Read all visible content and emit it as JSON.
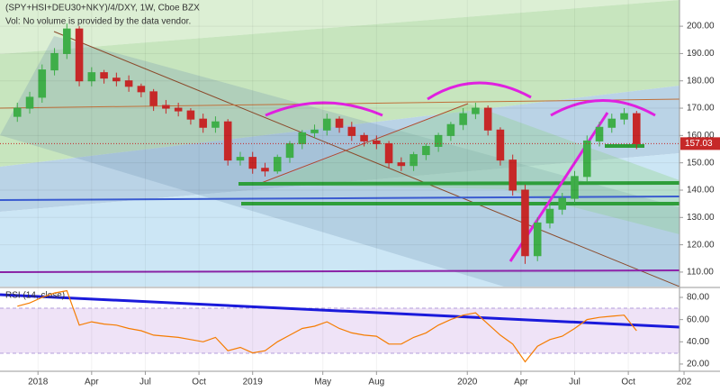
{
  "chart_data": {
    "type": "candlestick",
    "title": "(SPY+HSI+DEU30+NKY)/4/DXY, 1W, Cboe BZX",
    "subtitle": "Vol: No volume is provided by the data vendor.",
    "x": [
      -5,
      -2,
      1,
      4,
      7,
      10,
      13,
      16,
      19,
      22,
      25,
      28,
      31,
      34,
      37,
      40,
      43,
      46,
      49,
      52,
      55,
      58,
      61,
      64,
      67,
      70,
      73,
      76,
      79,
      82,
      85,
      88,
      91,
      94,
      97,
      100,
      103,
      106,
      109,
      112,
      115,
      118,
      121,
      124,
      127,
      130,
      133,
      136,
      139,
      142,
      145
    ],
    "open": [
      167,
      170,
      174,
      184,
      190,
      199,
      180,
      183,
      181,
      180,
      178,
      176,
      171,
      170,
      169,
      166,
      163,
      165,
      151,
      152,
      148,
      147,
      152,
      157,
      161,
      162,
      166,
      163,
      160,
      158,
      157,
      150,
      149,
      153,
      156,
      160,
      164,
      168,
      170,
      162,
      151,
      140,
      116,
      128,
      133,
      137,
      145,
      158,
      163,
      166,
      168
    ],
    "high": [
      172,
      176,
      186,
      192,
      201,
      200,
      185,
      184,
      183,
      182,
      179,
      177,
      173,
      172,
      170,
      168,
      167,
      166,
      154,
      154,
      150,
      153,
      158,
      162,
      164,
      168,
      167,
      165,
      161,
      160,
      158,
      152,
      154,
      157,
      161,
      165,
      170,
      172,
      171,
      163,
      153,
      142,
      130,
      135,
      139,
      147,
      160,
      165,
      168,
      170,
      169
    ],
    "low": [
      165,
      168,
      172,
      182,
      188,
      178,
      178,
      179,
      178,
      176,
      174,
      169,
      168,
      167,
      164,
      161,
      161,
      149,
      149,
      146,
      145,
      146,
      150,
      155,
      159,
      160,
      161,
      158,
      156,
      155,
      148,
      147,
      147,
      151,
      154,
      158,
      162,
      166,
      160,
      149,
      138,
      113,
      114,
      126,
      131,
      135,
      143,
      156,
      161,
      164,
      155
    ],
    "close": [
      170,
      174,
      184,
      190,
      199,
      180,
      183,
      181,
      180,
      178,
      176,
      171,
      170,
      169,
      166,
      163,
      165,
      151,
      152,
      148,
      147,
      152,
      157,
      161,
      162,
      166,
      163,
      160,
      158,
      157,
      150,
      149,
      153,
      156,
      160,
      164,
      168,
      170,
      162,
      151,
      140,
      116,
      128,
      133,
      137,
      145,
      158,
      163,
      166,
      168,
      157
    ],
    "up_color": "#3fae49",
    "down_color": "#c62828",
    "xlim": [
      -9.2,
      155.4
    ],
    "xticks": [
      {
        "value": 0,
        "label": "2018"
      },
      {
        "value": 13,
        "label": "Apr"
      },
      {
        "value": 26,
        "label": "Jul"
      },
      {
        "value": 39,
        "label": "Oct"
      },
      {
        "value": 52,
        "label": "2019"
      },
      {
        "value": 69,
        "label": "May"
      },
      {
        "value": 82,
        "label": "Aug"
      },
      {
        "value": 104,
        "label": "2020"
      },
      {
        "value": 117,
        "label": "Apr"
      },
      {
        "value": 130,
        "label": "Jul"
      },
      {
        "value": 143,
        "label": "Oct"
      },
      {
        "value": 156.5,
        "label": "202"
      }
    ],
    "ylim": [
      104.7,
      209.6
    ],
    "yticks": [
      {
        "value": 110,
        "label": "110.00"
      },
      {
        "value": 120,
        "label": "120.00"
      },
      {
        "value": 130,
        "label": "130.00"
      },
      {
        "value": 140,
        "label": "140.00"
      },
      {
        "value": 150,
        "label": "150.00"
      },
      {
        "value": 160,
        "label": "160.00"
      },
      {
        "value": 170,
        "label": "170.00"
      },
      {
        "value": 180,
        "label": "180.00"
      },
      {
        "value": 190,
        "label": "190.00"
      },
      {
        "value": 200,
        "label": "200.00"
      }
    ],
    "last_price": 157.03,
    "last_price_color": "#c62828",
    "indicator": {
      "name": "RSI (14, close)",
      "color": "#f57c00",
      "values": [
        72,
        75,
        80,
        84,
        86,
        55,
        58,
        56,
        55,
        52,
        50,
        46,
        45,
        44,
        42,
        40,
        44,
        32,
        35,
        30,
        32,
        40,
        46,
        52,
        54,
        58,
        52,
        48,
        46,
        45,
        38,
        38,
        44,
        48,
        55,
        60,
        64,
        66,
        56,
        46,
        38,
        22,
        36,
        42,
        45,
        52,
        60,
        62,
        63,
        64,
        50
      ],
      "ylim": [
        15.1,
        88.1
      ],
      "yticks": [
        {
          "value": 20,
          "label": "20.00"
        },
        {
          "value": 40,
          "label": "40.00"
        },
        {
          "value": 60,
          "label": "60.00"
        },
        {
          "value": 80,
          "label": "80.00"
        }
      ]
    }
  }
}
